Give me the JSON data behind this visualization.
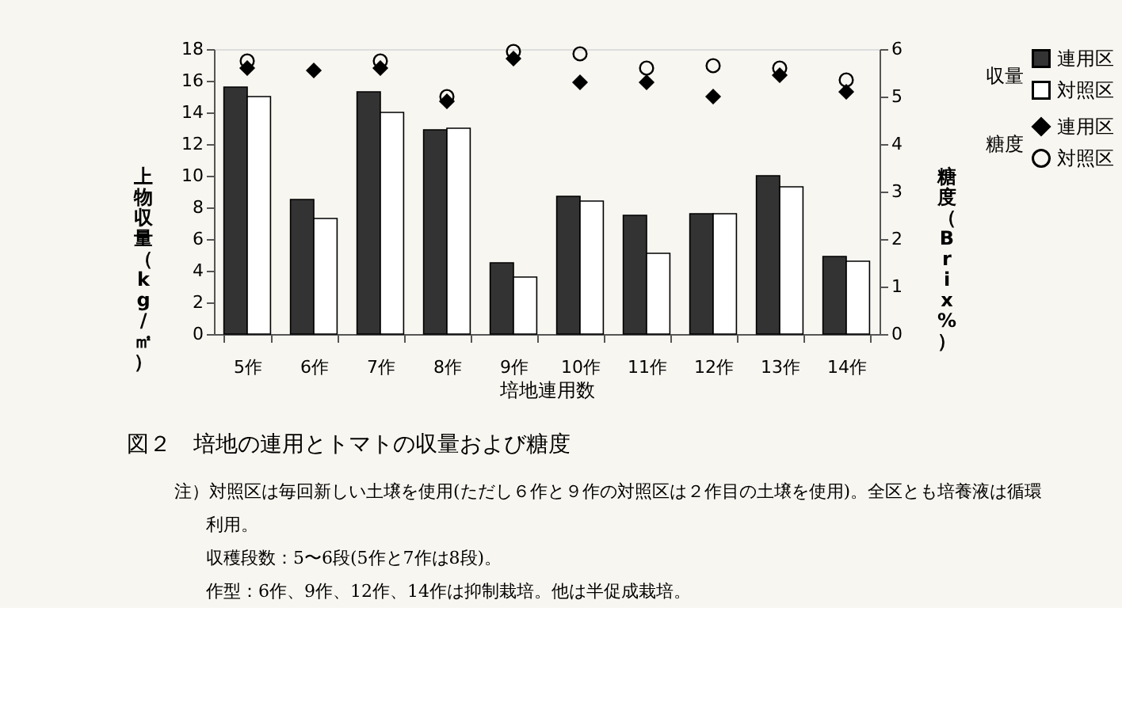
{
  "chart_data": {
    "type": "bar",
    "title": "図２　培地の連用とトマトの収量および糖度",
    "xlabel": "培地連用数",
    "ylabel": "上物収量（kg/㎡）",
    "y2label": "糖度（Brix%）",
    "legend_title": [
      "収量",
      "糖度"
    ],
    "legend": "right",
    "categories": [
      "5作",
      "6作",
      "7作",
      "8作",
      "9作",
      "10作",
      "11作",
      "12作",
      "13作",
      "14作"
    ],
    "series": [
      {
        "name": "連用区",
        "color": "#333333",
        "values": [
          15.6,
          8.5,
          15.3,
          12.9,
          4.5,
          8.7,
          7.5,
          7.6,
          10.0,
          4.9
        ]
      },
      {
        "name": "対照区",
        "color": "#ffffff",
        "values": [
          15.0,
          7.3,
          14.0,
          13.0,
          3.6,
          8.4,
          5.1,
          7.6,
          9.3,
          4.6
        ]
      },
      {
        "name": "連用区",
        "type": "scatter",
        "axis": "y2",
        "marker": "diamond",
        "color": "#000000",
        "values": [
          5.6,
          5.55,
          5.6,
          4.9,
          5.8,
          5.3,
          5.3,
          5.0,
          5.45,
          5.1
        ]
      },
      {
        "name": "対照区",
        "type": "scatter",
        "axis": "y2",
        "marker": "circle",
        "color": "#000000",
        "values": [
          5.75,
          null,
          5.75,
          5.0,
          5.95,
          5.9,
          5.6,
          5.65,
          5.6,
          5.35
        ]
      }
    ],
    "ylim": [
      0,
      18
    ],
    "yticks": [
      0,
      2,
      4,
      6,
      8,
      10,
      12,
      14,
      16,
      18
    ],
    "y2lim": [
      0,
      6
    ],
    "y2ticks": [
      0,
      1,
      2,
      3,
      4,
      5,
      6
    ],
    "grid": false,
    "annotations": [
      "注）対照区は毎回新しい土壌を使用(ただし６作と９作の対照区は２作目の土壌を使用)。全区とも培養液は循環利用。",
      "収穫段数：5〜6段(5作と7作は8段)。",
      "作型：6作、9作、12作、14作は抑制栽培。他は半促成栽培。"
    ]
  }
}
